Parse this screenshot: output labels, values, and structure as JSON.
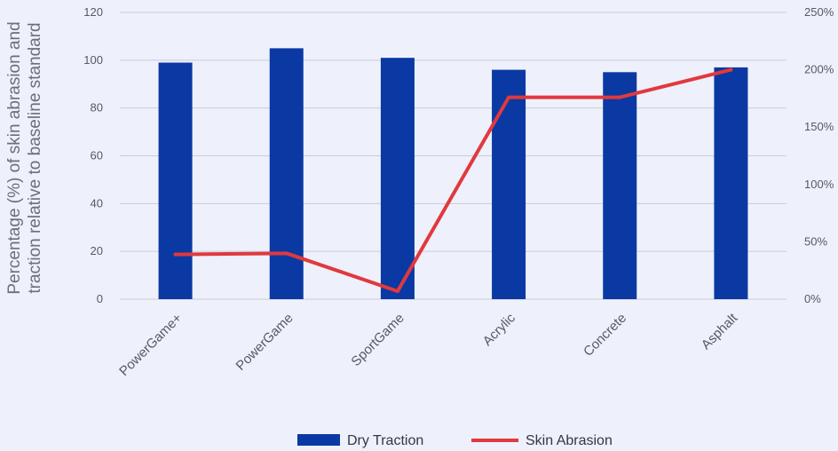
{
  "chart_data": {
    "type": "bar",
    "title": "",
    "categories": [
      "PowerGame+",
      "PowerGame",
      "SportGame",
      "Acrylic",
      "Concrete",
      "Asphalt"
    ],
    "ylabel_lines": [
      "Percentage (%) of skin abrasion and",
      "traction relative to baseline standard"
    ],
    "y_left": {
      "min": 0,
      "max": 120,
      "ticks": [
        "0",
        "20",
        "40",
        "60",
        "80",
        "100",
        "120"
      ]
    },
    "y_right": {
      "min": 0,
      "max": 250,
      "ticks": [
        "0%",
        "50%",
        "100%",
        "150%",
        "200%",
        "250%"
      ]
    },
    "grid": true,
    "legend_position": "bottom",
    "series": [
      {
        "name": "Dry Traction",
        "type": "bar",
        "axis": "left",
        "color": "#0a39a3",
        "values": [
          99,
          105,
          101,
          96,
          95,
          97
        ]
      },
      {
        "name": "Skin Abrasion",
        "type": "line",
        "axis": "right",
        "color": "#e0393e",
        "values": [
          39,
          40,
          7,
          176,
          176,
          200
        ]
      }
    ]
  }
}
